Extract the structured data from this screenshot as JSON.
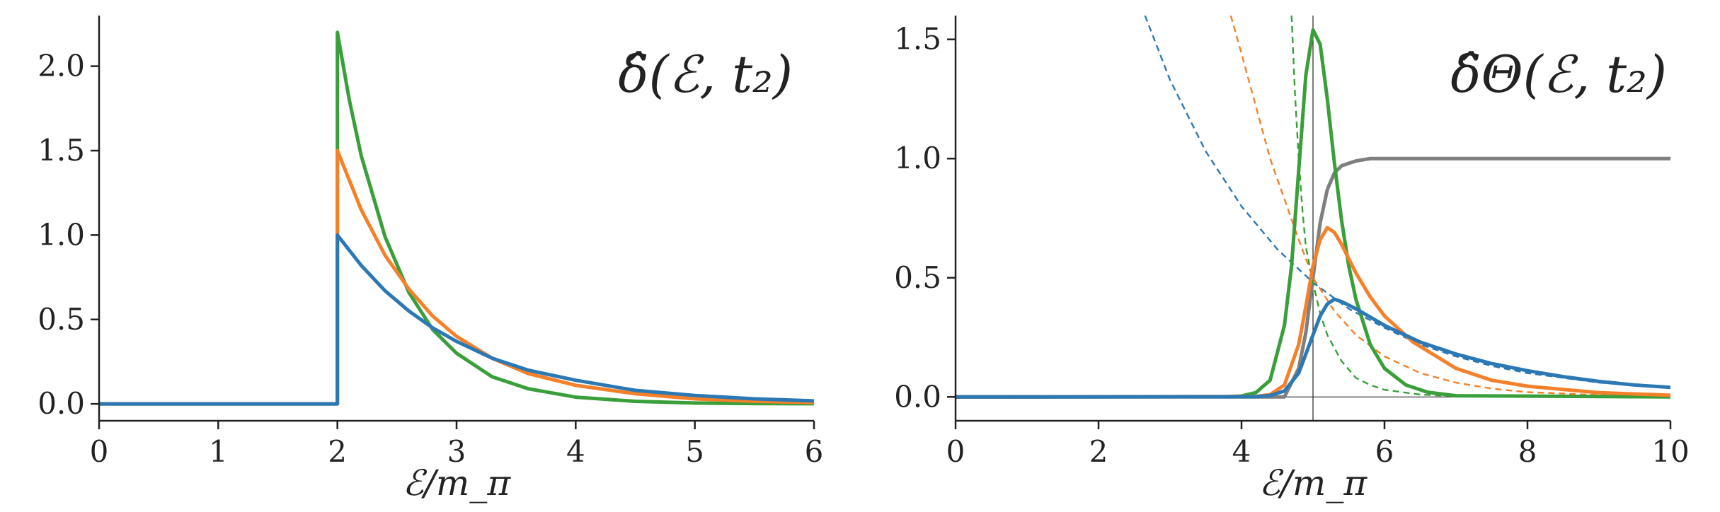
{
  "colors": {
    "blue": "#2b78b4",
    "orange": "#f5802a",
    "green": "#3a9f3a",
    "gray": "#7f7f7f",
    "axis": "#222222"
  },
  "chart_data": [
    {
      "type": "line",
      "title": "δ̂(ℰ, t₂)",
      "xlabel": "ℰ/m_π",
      "ylabel": "",
      "xlim": [
        0,
        6
      ],
      "ylim": [
        -0.1,
        2.3
      ],
      "xticks": [
        0,
        1,
        2,
        3,
        4,
        5,
        6
      ],
      "xtick_labels": [
        "0",
        "1",
        "2",
        "3",
        "4",
        "5",
        "6"
      ],
      "yticks": [
        0.0,
        0.5,
        1.0,
        1.5,
        2.0
      ],
      "ytick_labels": [
        "0.0",
        "0.5",
        "1.0",
        "1.5",
        "2.0"
      ],
      "grid": false,
      "series": [
        {
          "color": "green",
          "style": "solid",
          "x": [
            0,
            2,
            2,
            2.1,
            2.2,
            2.4,
            2.6,
            2.8,
            3.0,
            3.3,
            3.6,
            4.0,
            4.5,
            5.0,
            5.5,
            6.0
          ],
          "y": [
            0,
            0,
            2.2,
            1.8,
            1.47,
            0.99,
            0.66,
            0.44,
            0.3,
            0.16,
            0.09,
            0.04,
            0.015,
            0.005,
            0.002,
            0.001
          ]
        },
        {
          "color": "orange",
          "style": "solid",
          "x": [
            0,
            2,
            2,
            2.2,
            2.4,
            2.6,
            2.8,
            3.0,
            3.3,
            3.6,
            4.0,
            4.5,
            5.0,
            5.5,
            6.0
          ],
          "y": [
            0,
            0,
            1.5,
            1.15,
            0.88,
            0.68,
            0.52,
            0.4,
            0.27,
            0.18,
            0.11,
            0.06,
            0.03,
            0.015,
            0.008
          ]
        },
        {
          "color": "blue",
          "style": "solid",
          "x": [
            0,
            2,
            2,
            2.2,
            2.4,
            2.6,
            2.8,
            3.0,
            3.3,
            3.6,
            4.0,
            4.5,
            5.0,
            5.5,
            6.0
          ],
          "y": [
            0,
            0,
            1.0,
            0.82,
            0.67,
            0.55,
            0.45,
            0.37,
            0.27,
            0.2,
            0.14,
            0.08,
            0.05,
            0.03,
            0.018
          ]
        }
      ]
    },
    {
      "type": "line",
      "title": "δ̂Θ(ℰ, t₂)",
      "xlabel": "ℰ/m_π",
      "ylabel": "",
      "xlim": [
        0,
        10
      ],
      "ylim": [
        -0.1,
        1.6
      ],
      "xticks": [
        0,
        2,
        4,
        6,
        8,
        10
      ],
      "xtick_labels": [
        "0",
        "2",
        "4",
        "6",
        "8",
        "10"
      ],
      "yticks": [
        0.0,
        0.5,
        1.0,
        1.5
      ],
      "ytick_labels": [
        "0.0",
        "0.5",
        "1.0",
        "1.5"
      ],
      "grid": false,
      "reference_lines": {
        "vertical_x": 5,
        "horizontal_y": 0
      },
      "series": [
        {
          "color": "gray",
          "style": "solid",
          "x": [
            0,
            4.6,
            4.8,
            4.9,
            5.0,
            5.1,
            5.2,
            5.3,
            5.4,
            5.6,
            5.8,
            6.0,
            10.0
          ],
          "y": [
            0,
            0,
            0.12,
            0.27,
            0.5,
            0.73,
            0.87,
            0.94,
            0.97,
            0.99,
            1.0,
            1.0,
            1.0
          ]
        },
        {
          "color": "blue",
          "style": "dashed",
          "x": [
            2.65,
            3.0,
            3.5,
            4.0,
            4.5,
            5.0,
            5.5,
            6.0,
            6.5,
            7.0,
            7.5,
            8.0,
            9.0,
            10.0
          ],
          "y": [
            1.6,
            1.33,
            1.03,
            0.8,
            0.62,
            0.48,
            0.37,
            0.29,
            0.22,
            0.17,
            0.13,
            0.1,
            0.06,
            0.04
          ]
        },
        {
          "color": "orange",
          "style": "dashed",
          "x": [
            3.85,
            4.0,
            4.2,
            4.4,
            4.6,
            4.8,
            5.0,
            5.3,
            5.6,
            6.0,
            6.5,
            7.0,
            7.5,
            8.0,
            9.0,
            10.0
          ],
          "y": [
            1.6,
            1.44,
            1.22,
            1.0,
            0.83,
            0.66,
            0.5,
            0.36,
            0.26,
            0.17,
            0.1,
            0.06,
            0.035,
            0.02,
            0.008,
            0.003
          ]
        },
        {
          "color": "green",
          "style": "dashed",
          "x": [
            4.7,
            4.75,
            4.8,
            4.85,
            4.9,
            5.0,
            5.1,
            5.2,
            5.4,
            5.6,
            5.8,
            6.0,
            6.5,
            7.0,
            8.0,
            10.0
          ],
          "y": [
            1.6,
            1.26,
            1.0,
            0.79,
            0.63,
            0.48,
            0.35,
            0.26,
            0.15,
            0.08,
            0.05,
            0.03,
            0.01,
            0.003,
            0.0005,
            0
          ]
        },
        {
          "color": "green",
          "style": "solid",
          "x": [
            0,
            3.8,
            4.0,
            4.2,
            4.4,
            4.6,
            4.7,
            4.8,
            4.9,
            5.0,
            5.1,
            5.2,
            5.3,
            5.4,
            5.5,
            5.6,
            5.8,
            6.0,
            6.3,
            6.6,
            7.0,
            10.0
          ],
          "y": [
            0,
            0.001,
            0.004,
            0.018,
            0.07,
            0.3,
            0.55,
            0.95,
            1.35,
            1.54,
            1.48,
            1.25,
            0.98,
            0.74,
            0.55,
            0.41,
            0.22,
            0.12,
            0.05,
            0.02,
            0.005,
            0
          ]
        },
        {
          "color": "orange",
          "style": "solid",
          "x": [
            0,
            4.2,
            4.4,
            4.6,
            4.8,
            4.9,
            5.0,
            5.1,
            5.2,
            5.3,
            5.4,
            5.6,
            5.8,
            6.0,
            6.4,
            7.0,
            7.5,
            8.0,
            9.0,
            10.0
          ],
          "y": [
            0,
            0.002,
            0.01,
            0.05,
            0.22,
            0.38,
            0.55,
            0.66,
            0.71,
            0.69,
            0.64,
            0.52,
            0.42,
            0.34,
            0.23,
            0.12,
            0.07,
            0.045,
            0.018,
            0.007
          ]
        },
        {
          "color": "blue",
          "style": "solid",
          "x": [
            0,
            4.2,
            4.4,
            4.6,
            4.8,
            5.0,
            5.1,
            5.2,
            5.3,
            5.4,
            5.6,
            5.8,
            6.0,
            6.5,
            7.0,
            7.5,
            8.0,
            8.5,
            9.0,
            9.5,
            10.0
          ],
          "y": [
            0,
            0.001,
            0.006,
            0.025,
            0.1,
            0.26,
            0.34,
            0.39,
            0.41,
            0.4,
            0.37,
            0.335,
            0.3,
            0.23,
            0.18,
            0.14,
            0.11,
            0.085,
            0.065,
            0.05,
            0.04
          ]
        }
      ]
    }
  ]
}
